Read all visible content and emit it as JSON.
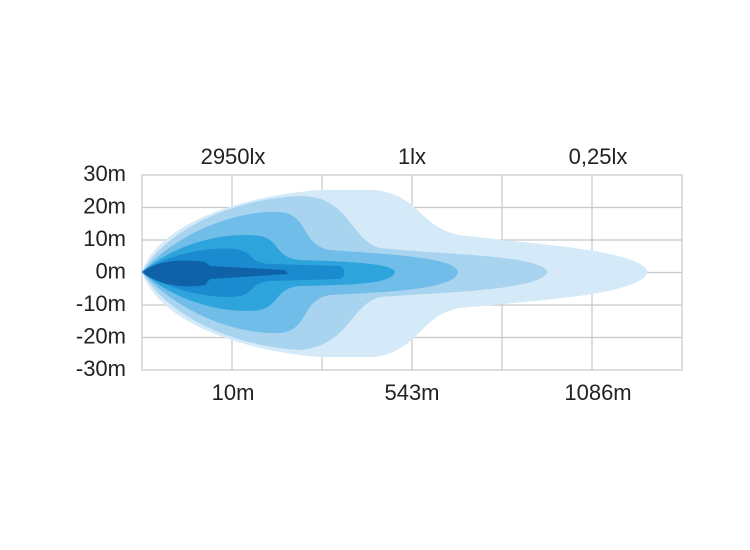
{
  "axis": {
    "y_labels": [
      "30m",
      "20m",
      "10m",
      "0m",
      "-10m",
      "-20m",
      "-30m"
    ]
  },
  "top_labels": [
    "2950lx",
    "1lx",
    "0,25lx"
  ],
  "bottom_labels": [
    "10m",
    "543m",
    "1086m"
  ]
}
